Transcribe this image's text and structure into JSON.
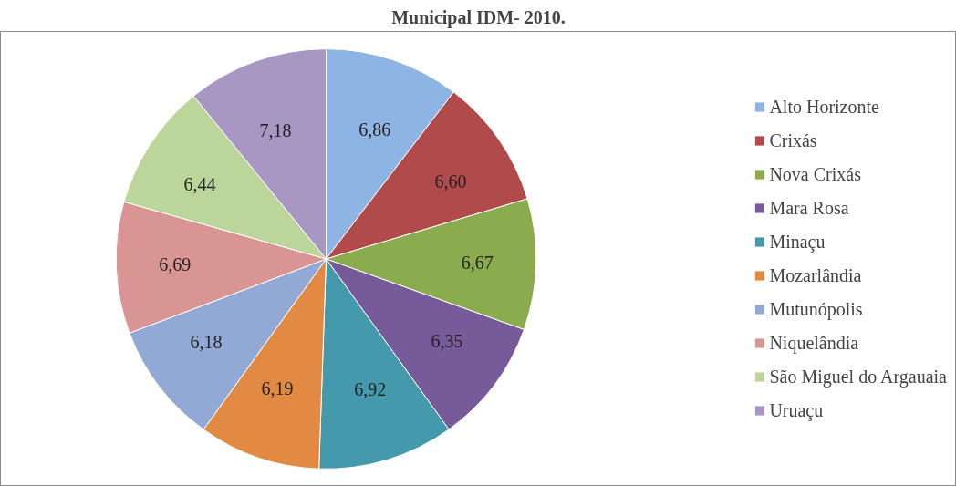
{
  "chart_data": {
    "type": "pie",
    "title": "Municipal IDM- 2010.",
    "categories": [
      "Alto Horizonte",
      "Crixás",
      "Nova Crixás",
      "Mara Rosa",
      "Minaçu",
      "Mozarlândia",
      "Mutunópolis",
      "Niquelândia",
      "São Miguel do Argauaia",
      "Uruaçu"
    ],
    "values": [
      6.86,
      6.6,
      6.67,
      6.35,
      6.92,
      6.19,
      6.18,
      6.69,
      6.44,
      7.18
    ],
    "value_labels": [
      "6,86",
      "6,60",
      "6,67",
      "6,35",
      "6,92",
      "6,19",
      "6,18",
      "6,69",
      "6,44",
      "7,18"
    ],
    "colors": [
      "#8eb4e3",
      "#b14b4b",
      "#8aab4e",
      "#765a99",
      "#4499ad",
      "#e28a43",
      "#93a9d5",
      "#d99594",
      "#bcd59a",
      "#a896c3"
    ],
    "legend": "right"
  }
}
